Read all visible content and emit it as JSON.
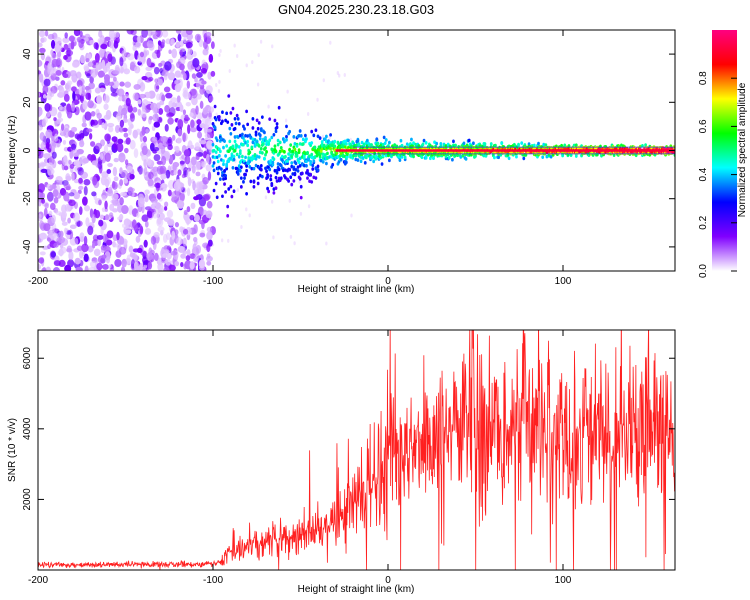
{
  "title": "GN04.2025.230.23.18.G03",
  "chart_data": [
    {
      "type": "heatmap",
      "title": "",
      "xlabel": "Height of straight line (km)",
      "ylabel": "Frequency (Hz)",
      "xlim": [
        -200,
        164
      ],
      "ylim": [
        -50,
        50
      ],
      "x_ticks": [
        -200,
        -100,
        0,
        100
      ],
      "y_ticks": [
        -40,
        -20,
        0,
        20,
        40
      ],
      "colorbar": {
        "label": "Normalized spectral amplitude",
        "range": [
          0,
          1
        ],
        "ticks": [
          "0.0",
          "0.2",
          "0.4",
          "0.6",
          "0.8"
        ],
        "colormap": [
          "#ffffff",
          "#8000ff",
          "#0000ff",
          "#00ffff",
          "#00ff00",
          "#ffff00",
          "#ff0000",
          "#ff0080"
        ]
      },
      "features": {
        "noise_region_x": [
          -200,
          -100
        ],
        "signal_line_frequency": 0,
        "signal_emerges_x": -100
      }
    },
    {
      "type": "line",
      "title": "",
      "xlabel": "Height of straight line (km)",
      "ylabel": "SNR (10 * v/v)",
      "xlim": [
        -200,
        164
      ],
      "ylim": [
        0,
        6800
      ],
      "x_ticks": [
        -200,
        -100,
        0,
        100
      ],
      "y_ticks": [
        2000,
        4000,
        6000
      ],
      "color": "#ff2020",
      "series": [
        {
          "envelope_x": [
            -200,
            -150,
            -100,
            -95,
            -90,
            -80,
            -70,
            -60,
            -50,
            -40,
            -30,
            -20,
            -10,
            0,
            10,
            20,
            30,
            40,
            50,
            60,
            70,
            80,
            100,
            120,
            140,
            164
          ],
          "envelope_y": [
            150,
            150,
            170,
            250,
            500,
            700,
            800,
            900,
            1000,
            1200,
            1400,
            1800,
            2400,
            2900,
            3200,
            3600,
            3900,
            4100,
            4200,
            4100,
            4000,
            3950,
            3900,
            3850,
            3800,
            3800
          ]
        }
      ]
    }
  ]
}
